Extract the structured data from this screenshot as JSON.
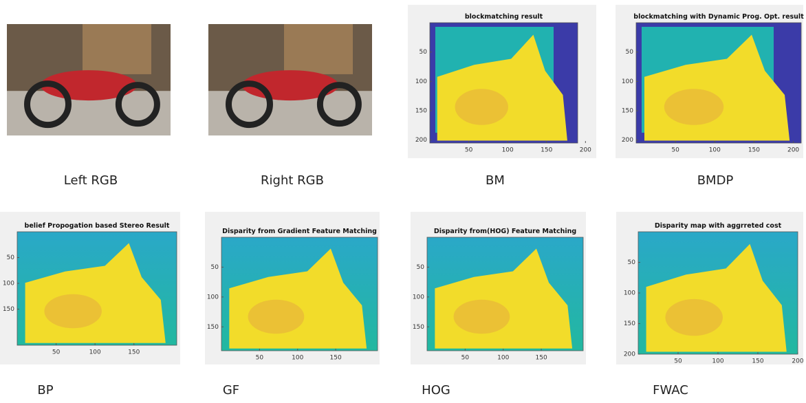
{
  "panels": [
    {
      "caption": "Left RGB"
    },
    {
      "caption": "Right RGB"
    },
    {
      "caption": "BM",
      "title": "blockmatching result",
      "yticks": [
        50,
        100,
        150,
        200
      ],
      "xticks": [
        50,
        100,
        150,
        200
      ]
    },
    {
      "caption": "BMDP",
      "title": "blockmatching with Dynamic Prog. Opt. result",
      "yticks": [
        50,
        100,
        150,
        200
      ],
      "xticks": [
        50,
        100,
        150,
        200
      ]
    },
    {
      "caption": "BP",
      "title": "belief Propogation based Stereo Result",
      "yticks": [
        50,
        100,
        150
      ],
      "xticks": [
        50,
        100,
        150
      ]
    },
    {
      "caption": "GF",
      "title": "Disparity from Gradient Feature Matching",
      "yticks": [
        50,
        100,
        150
      ],
      "xticks": [
        50,
        100,
        150
      ]
    },
    {
      "caption": "HOG",
      "title": "Disparity from(HOG) Feature Matching",
      "yticks": [
        50,
        100,
        150
      ],
      "xticks": [
        50,
        100,
        150
      ]
    },
    {
      "caption": "FWAC",
      "title": "Disparity map with aggrreted cost",
      "yticks": [
        50,
        100,
        150,
        200
      ],
      "xticks": [
        50,
        100,
        150,
        200
      ]
    }
  ]
}
